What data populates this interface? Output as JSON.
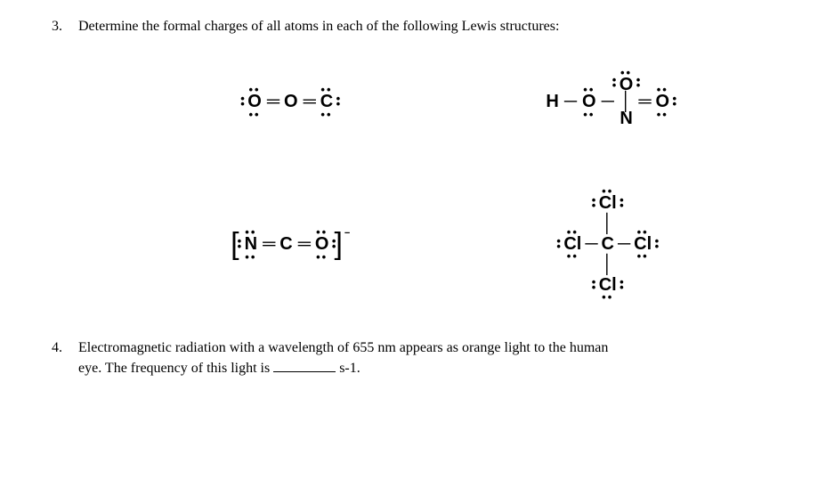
{
  "q3": {
    "number": "3.",
    "text": "Determine the formal charges of all atoms in each of the following Lewis structures:",
    "s1": {
      "o1": "O",
      "o2": "O",
      "c": "C",
      "db": "═"
    },
    "s2": {
      "h": "H",
      "o1": "O",
      "n": "N",
      "o2": "O",
      "o3": "O",
      "sb": "─",
      "db": "═"
    },
    "s3": {
      "lb": "[",
      "rb": "]",
      "n": "N",
      "c": "C",
      "o": "O",
      "db": "═",
      "charge": "−"
    },
    "s4": {
      "cl": "Cl",
      "c": "C",
      "sb": "─"
    }
  },
  "q4": {
    "number": "4.",
    "line1": "Electromagnetic radiation with a wavelength of 655 nm appears as orange light to the human",
    "line2a": "eye.  The frequency of this light is ",
    "line2b": " s-1."
  },
  "style": {
    "background": "#ffffff",
    "text_color": "#000000",
    "body_font": "Georgia",
    "lewis_font": "Arial",
    "q_fontsize": 16,
    "lewis_fontsize": 20
  }
}
